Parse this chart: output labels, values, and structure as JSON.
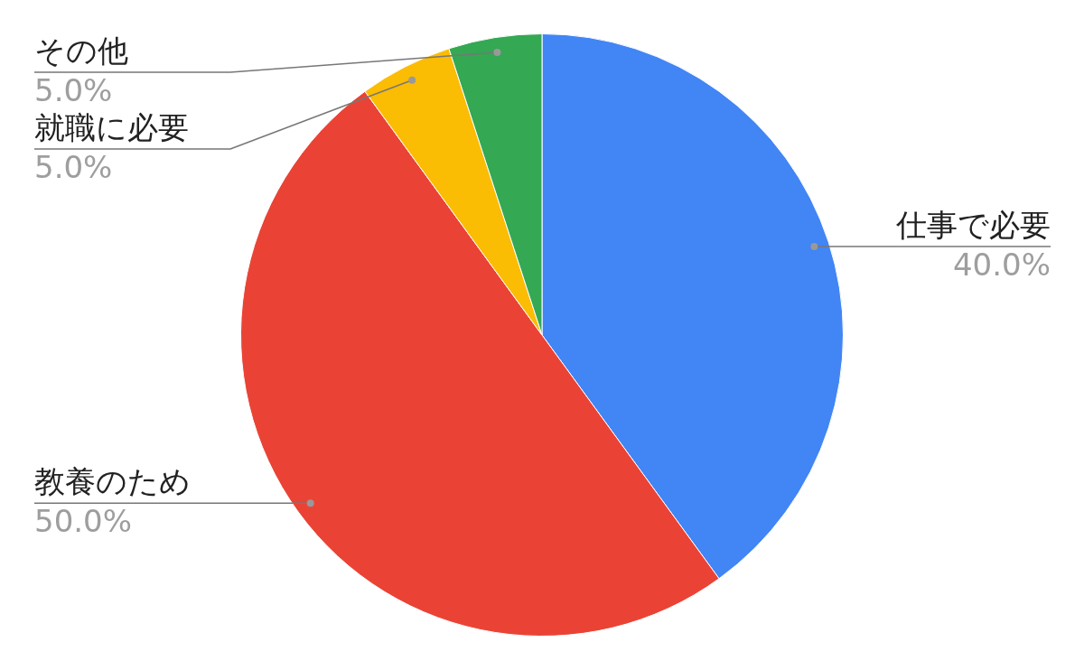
{
  "chart_data": {
    "type": "pie",
    "categories": [
      "仕事で必要",
      "教養のため",
      "就職に必要",
      "その他"
    ],
    "values": [
      40,
      50,
      5,
      5
    ],
    "colors": [
      "#4285f4",
      "#ea4335",
      "#fbbc04",
      "#34a853"
    ],
    "value_labels": [
      "40.0%",
      "50.0%",
      "5.0%",
      "5.0%"
    ],
    "legend": false
  }
}
